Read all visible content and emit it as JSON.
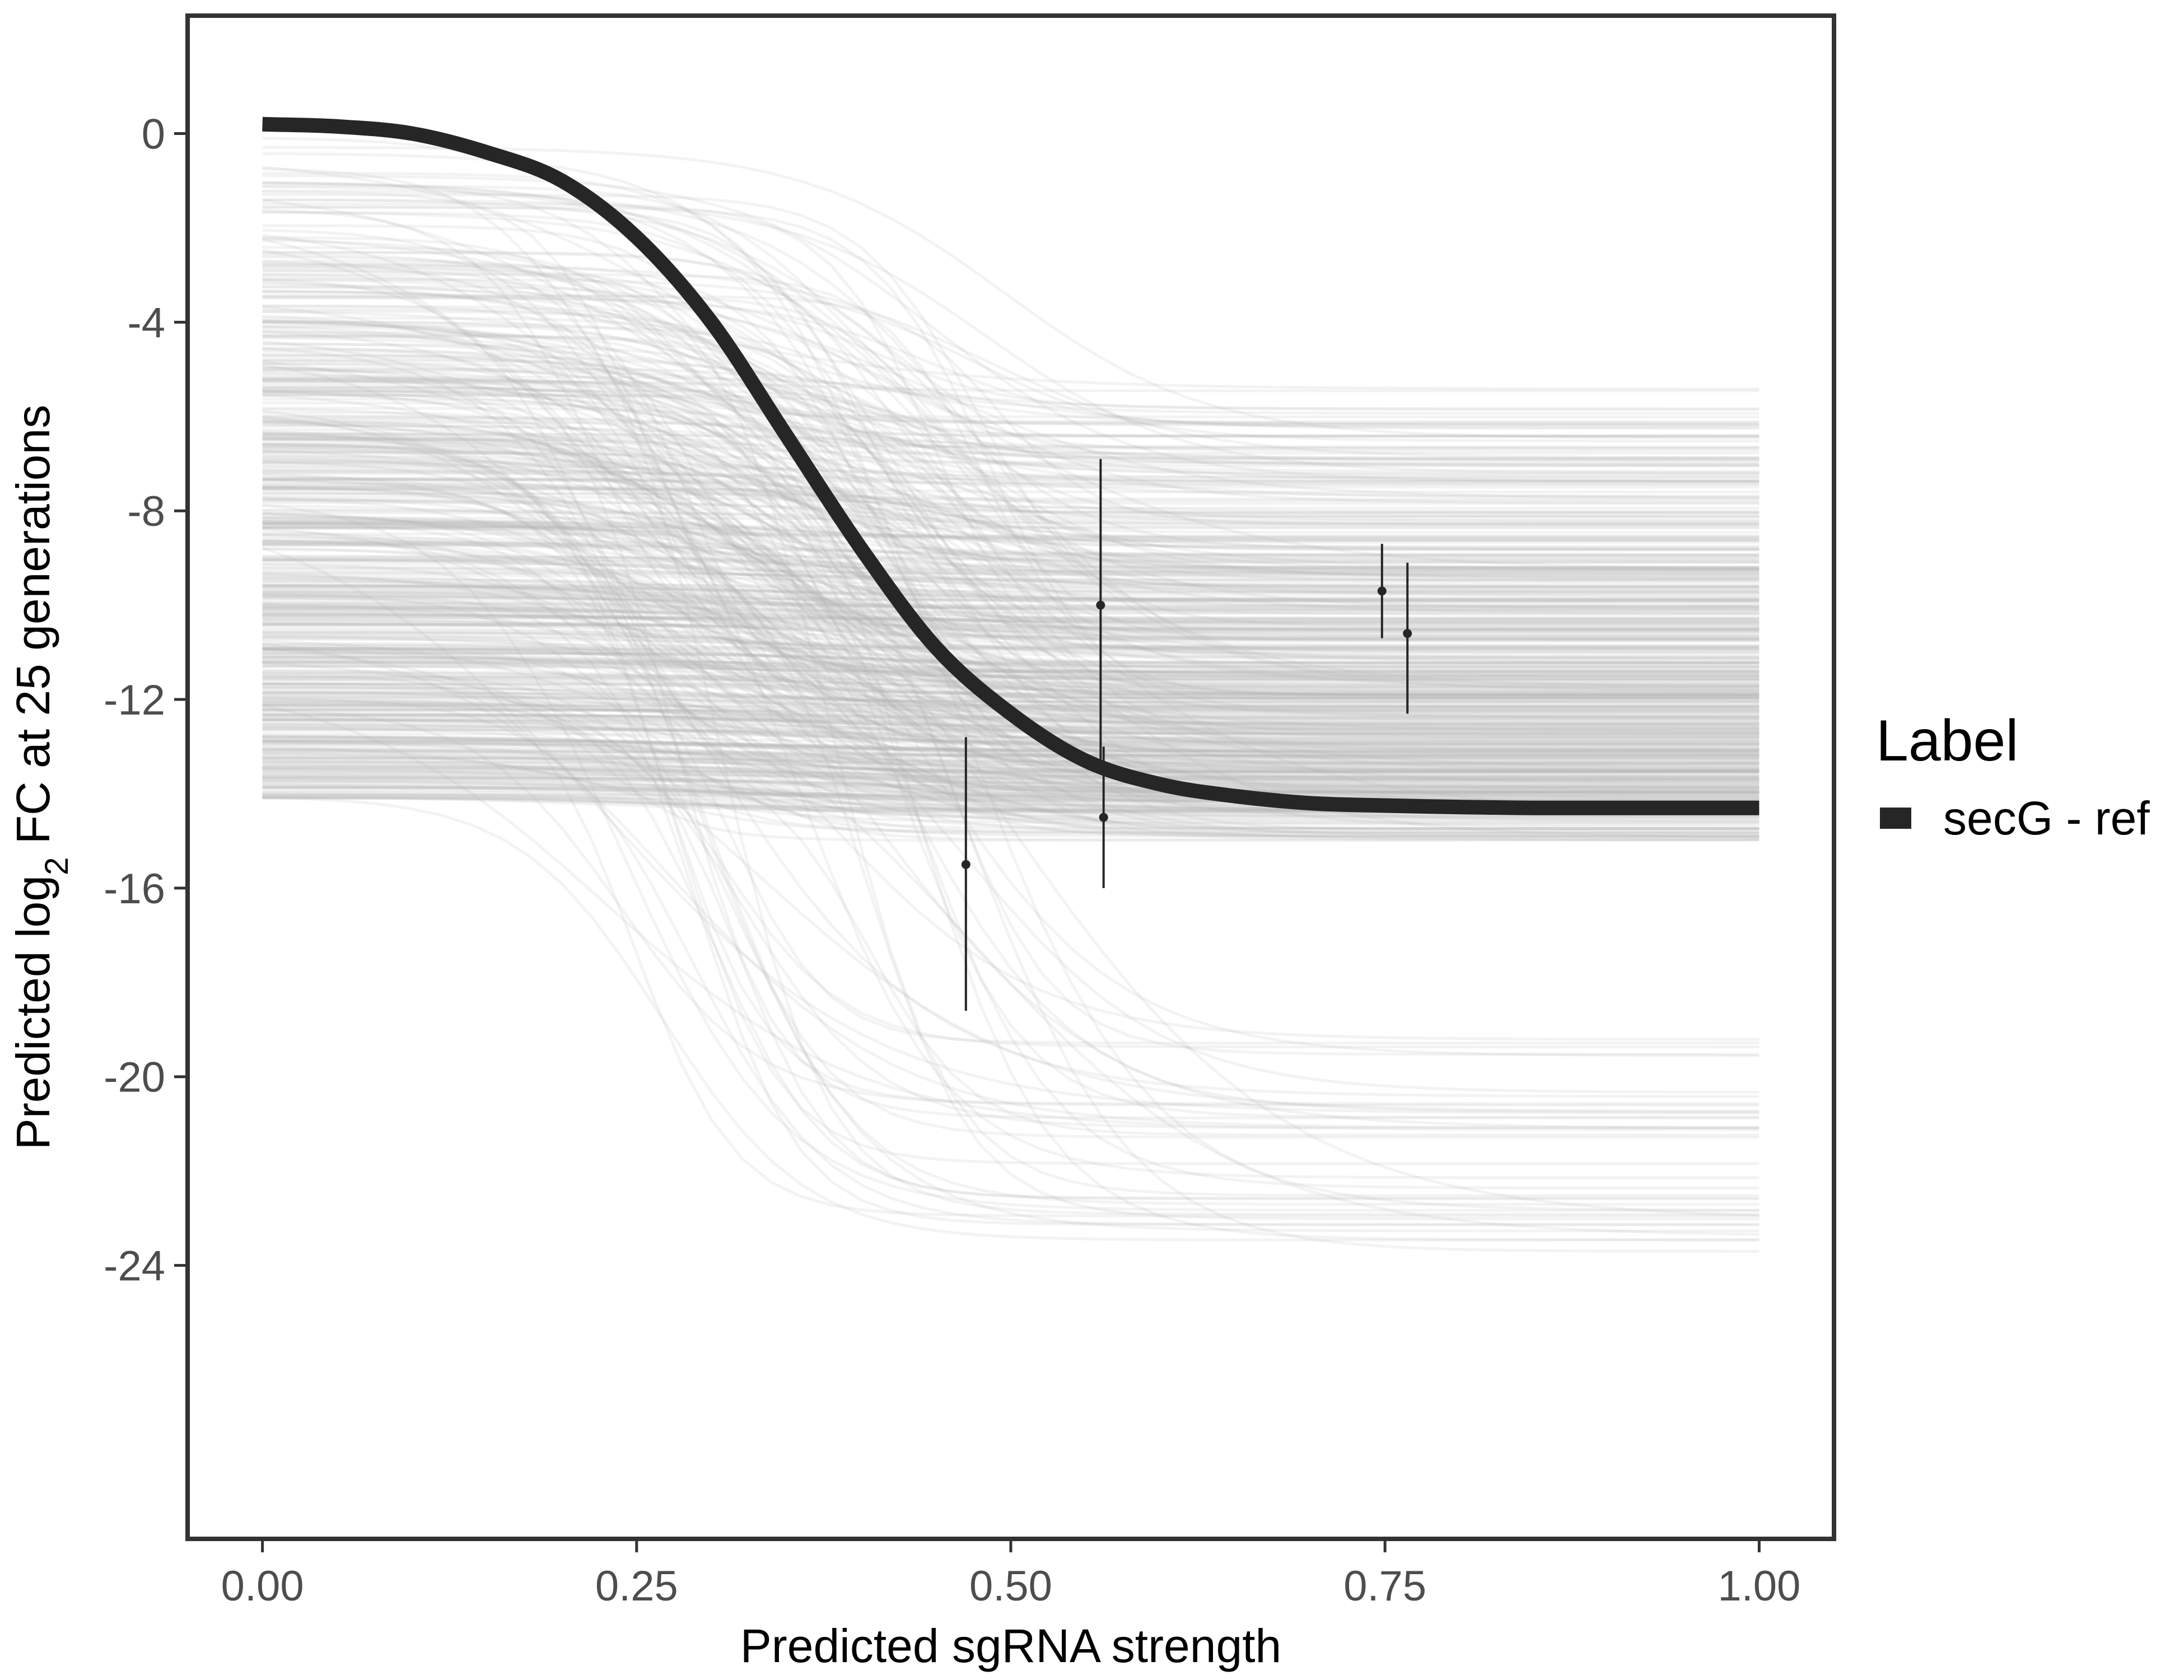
{
  "chart_data": {
    "type": "line",
    "title": "",
    "xlabel": "Predicted sgRNA strength",
    "ylabel_parts": {
      "prefix": "Predicted ",
      "log": "log",
      "subscript": "2",
      "suffix": " FC at 25 generations"
    },
    "xlim": [
      -0.05,
      1.05
    ],
    "ylim": [
      -29.8,
      2.5
    ],
    "x_ticks": [
      0,
      0.25,
      0.5,
      0.75,
      1
    ],
    "x_tick_labels": [
      "0.00",
      "0.25",
      "0.50",
      "0.75",
      "1.00"
    ],
    "y_ticks": [
      0,
      -4,
      -8,
      -12,
      -16,
      -20,
      -24
    ],
    "y_tick_labels": [
      "0",
      "-4",
      "-8",
      "-12",
      "-16",
      "-20",
      "-24"
    ],
    "grid": false,
    "main_curve": {
      "name": "secG - ref",
      "color": "#262626",
      "x": [
        0,
        0.05,
        0.1,
        0.15,
        0.2,
        0.25,
        0.3,
        0.35,
        0.4,
        0.45,
        0.5,
        0.55,
        0.6,
        0.65,
        0.7,
        0.75,
        0.8,
        0.85,
        0.9,
        0.95,
        1
      ],
      "y": [
        0.2,
        0.15,
        0.0,
        -0.4,
        -1.0,
        -2.2,
        -4.0,
        -6.4,
        -8.8,
        -10.9,
        -12.3,
        -13.3,
        -13.8,
        -14.05,
        -14.2,
        -14.25,
        -14.28,
        -14.3,
        -14.3,
        -14.3,
        -14.3
      ]
    },
    "posterior_draws": {
      "count": 600,
      "color": "#b3b3b3",
      "description": "posterior sigmoid draws",
      "start_y_range": [
        -14.1,
        0.3
      ],
      "end_y_range": [
        -24.0,
        -5.4
      ]
    },
    "observations": [
      {
        "x": 0.47,
        "y": -15.5,
        "ymin": -18.6,
        "ymax": -12.8
      },
      {
        "x": 0.56,
        "y": -10.0,
        "ymin": -13.3,
        "ymax": -6.9
      },
      {
        "x": 0.562,
        "y": -14.5,
        "ymin": -16.0,
        "ymax": -13.0
      },
      {
        "x": 0.748,
        "y": -9.7,
        "ymin": -10.7,
        "ymax": -8.7
      },
      {
        "x": 0.765,
        "y": -10.6,
        "ymin": -12.3,
        "ymax": -9.1
      }
    ],
    "legend": {
      "title": "Label",
      "entries": [
        "secG - ref"
      ],
      "position": "right"
    }
  }
}
